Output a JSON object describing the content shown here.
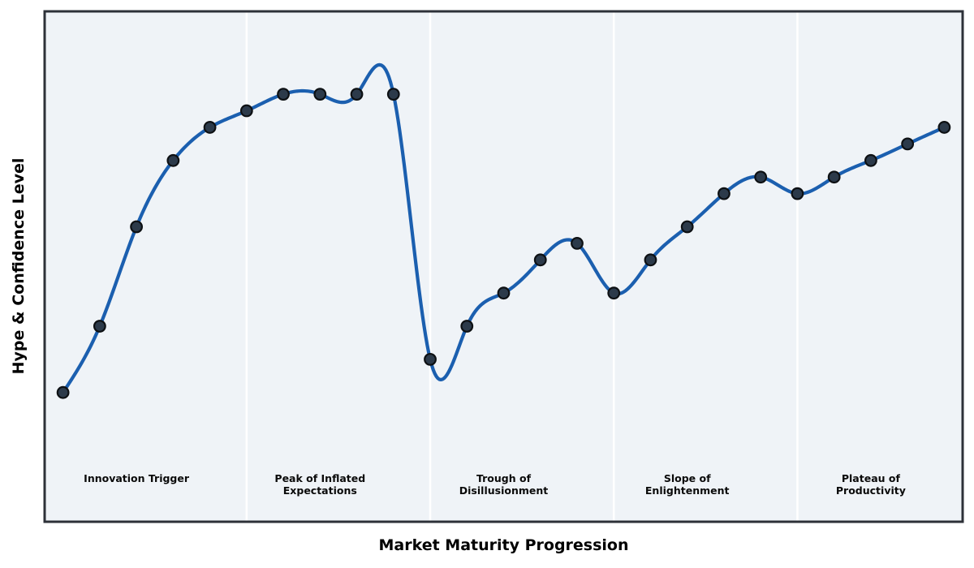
{
  "axes": {
    "x_label": "Market Maturity Progression",
    "y_label": "Hype & Confidence Level"
  },
  "chart_data": {
    "type": "line",
    "interpolation": "natural-cubic-spline",
    "markers": true,
    "grid": false,
    "title": "",
    "xlabel": "Market Maturity Progression",
    "ylabel": "Hype & Confidence Level",
    "x": [
      0,
      1,
      2,
      3,
      4,
      5,
      6,
      7,
      8,
      9,
      10,
      11,
      12,
      13,
      14,
      15,
      16,
      17,
      18,
      19,
      20,
      21,
      22,
      23,
      24
    ],
    "values": [
      5,
      9,
      15,
      19,
      21,
      22,
      23,
      23,
      23,
      23,
      7,
      9,
      11,
      13,
      14,
      11,
      13,
      15,
      17,
      18,
      17,
      18,
      19,
      20,
      21
    ],
    "xlim": [
      -0.5,
      24.5
    ],
    "ylim": [
      -2.8,
      28.0
    ],
    "phase_boundaries_x": [
      5,
      10,
      15,
      20
    ],
    "phases": [
      {
        "label_line1": "Innovation Trigger",
        "label_line2": "",
        "center_x": 2
      },
      {
        "label_line1": "Peak of Inflated",
        "label_line2": "Expectations",
        "center_x": 7
      },
      {
        "label_line1": "Trough of",
        "label_line2": "Disillusionment",
        "center_x": 12
      },
      {
        "label_line1": "Slope of",
        "label_line2": "Enlightenment",
        "center_x": 17
      },
      {
        "label_line1": "Plateau of",
        "label_line2": "Productivity",
        "center_x": 22
      }
    ],
    "colors": {
      "line": "#1b5faf",
      "marker_fill": "#2c3a4a",
      "marker_edge": "#0d1013",
      "plot_bg": "#eff3f7",
      "divider": "#ffffff",
      "border": "#2d3138",
      "text": "#000000"
    }
  }
}
